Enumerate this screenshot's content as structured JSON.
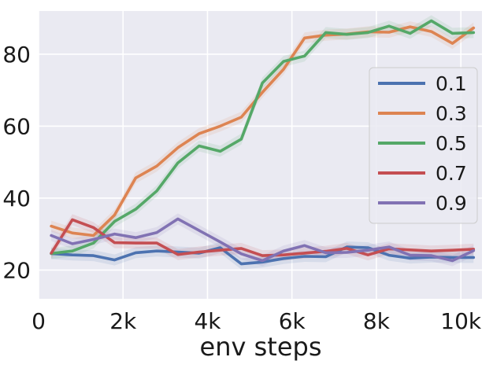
{
  "chart_data": {
    "type": "line",
    "title": "",
    "xlabel": "env steps",
    "ylabel": "",
    "xlim": [
      0,
      10500
    ],
    "ylim": [
      12,
      92
    ],
    "grid": true,
    "legend_position": "right",
    "x_ticks": [
      {
        "value": 0,
        "label": "0"
      },
      {
        "value": 2000,
        "label": "2k"
      },
      {
        "value": 4000,
        "label": "4k"
      },
      {
        "value": 6000,
        "label": "6k"
      },
      {
        "value": 8000,
        "label": "8k"
      },
      {
        "value": 10000,
        "label": "10k"
      }
    ],
    "y_ticks": [
      {
        "value": 20,
        "label": "20"
      },
      {
        "value": 40,
        "label": "40"
      },
      {
        "value": 60,
        "label": "60"
      },
      {
        "value": 80,
        "label": "80"
      }
    ],
    "x": [
      300,
      800,
      1300,
      1800,
      2300,
      2800,
      3300,
      3800,
      4300,
      4800,
      5300,
      5800,
      6300,
      6800,
      7300,
      7800,
      8300,
      8800,
      9300,
      9800,
      10300
    ],
    "series": [
      {
        "name": "0.1",
        "color": "#4c72b0",
        "values": [
          24.6,
          24.2,
          24.0,
          22.8,
          24.8,
          25.3,
          25.0,
          24.7,
          26.2,
          21.7,
          22.2,
          23.2,
          23.8,
          23.7,
          26.4,
          26.2,
          24.1,
          23.3,
          23.6,
          23.5,
          23.5
        ]
      },
      {
        "name": "0.3",
        "color": "#dd8452",
        "values": [
          32.2,
          30.3,
          29.6,
          35.3,
          45.6,
          48.9,
          54.0,
          57.9,
          60.0,
          62.5,
          69.4,
          75.8,
          84.5,
          85.3,
          85.6,
          86.2,
          86.1,
          87.6,
          86.3,
          83.0,
          87.3
        ]
      },
      {
        "name": "0.5",
        "color": "#55a868",
        "values": [
          24.6,
          25.3,
          27.5,
          33.5,
          36.9,
          42.0,
          49.8,
          54.5,
          53.0,
          56.4,
          72.0,
          78.0,
          79.5,
          86.0,
          85.5,
          86.0,
          87.8,
          85.8,
          89.3,
          85.8,
          86.0
        ]
      },
      {
        "name": "0.7",
        "color": "#c44e52",
        "values": [
          24.7,
          34.0,
          31.8,
          27.6,
          27.5,
          27.5,
          24.3,
          25.0,
          25.5,
          26.0,
          24.0,
          24.2,
          24.7,
          25.2,
          26.0,
          24.2,
          25.9,
          25.6,
          25.3,
          25.5,
          25.8
        ]
      },
      {
        "name": "0.9",
        "color": "#8172b3",
        "values": [
          29.6,
          27.3,
          28.5,
          30.0,
          29.0,
          30.4,
          34.2,
          31.0,
          27.8,
          24.5,
          22.6,
          25.3,
          26.8,
          24.8,
          24.9,
          25.5,
          26.4,
          24.1,
          24.0,
          22.6,
          25.4
        ]
      }
    ]
  }
}
